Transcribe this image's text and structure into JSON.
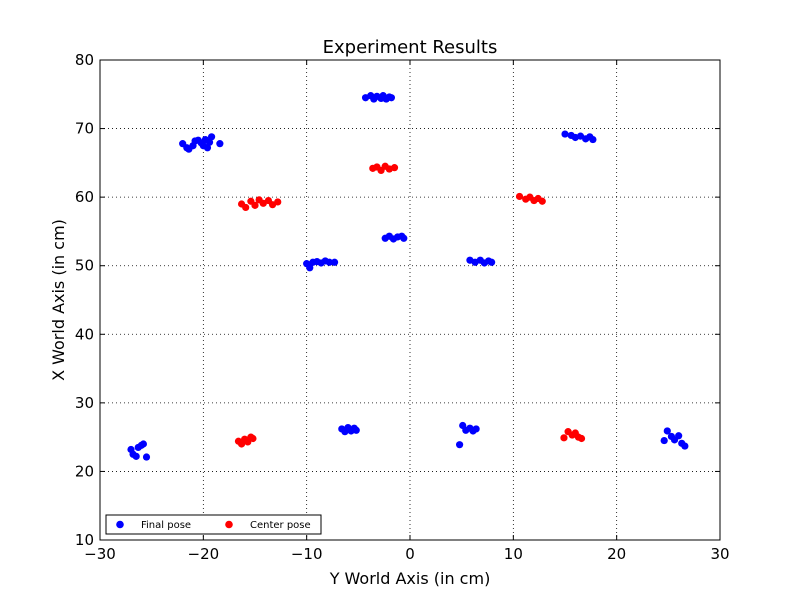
{
  "chart_data": {
    "type": "scatter",
    "title": "Experiment Results",
    "xlabel": "Y World Axis (in cm)",
    "ylabel": "X World Axis (in cm)",
    "xlim": [
      -30,
      30
    ],
    "ylim": [
      10,
      80
    ],
    "x_ticks": [
      "−30",
      "−20",
      "−10",
      "0",
      "10",
      "20",
      "30"
    ],
    "y_ticks": [
      "10",
      "20",
      "30",
      "40",
      "50",
      "60",
      "70",
      "80"
    ],
    "grid": true,
    "legend_position": "bottom-left",
    "series": [
      {
        "name": "Final pose",
        "color": "#0000ff",
        "points": [
          [
            -22,
            67.8
          ],
          [
            -21.6,
            67.2
          ],
          [
            -21.4,
            67.0
          ],
          [
            -21,
            67.5
          ],
          [
            -20.8,
            68.2
          ],
          [
            -20.5,
            68.3
          ],
          [
            -20.2,
            67.9
          ],
          [
            -20,
            67.5
          ],
          [
            -19.8,
            68.4
          ],
          [
            -19.6,
            67.2
          ],
          [
            -19.4,
            68.0
          ],
          [
            -19.2,
            68.8
          ],
          [
            -18.4,
            67.8
          ],
          [
            -4.3,
            74.5
          ],
          [
            -3.8,
            74.8
          ],
          [
            -3.5,
            74.3
          ],
          [
            -3.2,
            74.7
          ],
          [
            -2.8,
            74.4
          ],
          [
            -2.6,
            74.8
          ],
          [
            -2.3,
            74.3
          ],
          [
            -2.0,
            74.6
          ],
          [
            -1.8,
            74.5
          ],
          [
            15,
            69.2
          ],
          [
            15.6,
            69.0
          ],
          [
            16.0,
            68.7
          ],
          [
            16.5,
            68.9
          ],
          [
            17.0,
            68.5
          ],
          [
            17.4,
            68.8
          ],
          [
            17.7,
            68.4
          ],
          [
            -2.4,
            54.0
          ],
          [
            -2.0,
            54.3
          ],
          [
            -1.6,
            53.9
          ],
          [
            -1.2,
            54.2
          ],
          [
            -0.8,
            54.3
          ],
          [
            -0.6,
            54.0
          ],
          [
            -10,
            50.3
          ],
          [
            -9.7,
            49.7
          ],
          [
            -9.4,
            50.5
          ],
          [
            -9.0,
            50.6
          ],
          [
            -8.6,
            50.4
          ],
          [
            -8.2,
            50.7
          ],
          [
            -7.8,
            50.5
          ],
          [
            -7.3,
            50.5
          ],
          [
            5.8,
            50.8
          ],
          [
            6.3,
            50.5
          ],
          [
            6.8,
            50.8
          ],
          [
            7.2,
            50.4
          ],
          [
            7.6,
            50.7
          ],
          [
            7.9,
            50.5
          ],
          [
            -27,
            23.2
          ],
          [
            -26.8,
            22.5
          ],
          [
            -26.5,
            22.2
          ],
          [
            -26.3,
            23.5
          ],
          [
            -26.0,
            23.8
          ],
          [
            -25.8,
            24.0
          ],
          [
            -25.5,
            22.1
          ],
          [
            -6.6,
            26.2
          ],
          [
            -6.3,
            25.8
          ],
          [
            -6.0,
            26.4
          ],
          [
            -5.7,
            25.9
          ],
          [
            -5.4,
            26.3
          ],
          [
            -5.2,
            26.0
          ],
          [
            4.8,
            23.9
          ],
          [
            5.1,
            26.7
          ],
          [
            5.4,
            26.0
          ],
          [
            5.8,
            26.3
          ],
          [
            6.1,
            25.9
          ],
          [
            6.4,
            26.2
          ],
          [
            24.6,
            24.5
          ],
          [
            24.9,
            25.9
          ],
          [
            25.3,
            25.1
          ],
          [
            25.6,
            24.6
          ],
          [
            26.0,
            25.2
          ],
          [
            26.3,
            24.1
          ],
          [
            26.6,
            23.7
          ]
        ]
      },
      {
        "name": "Center pose",
        "color": "#ff0000",
        "points": [
          [
            -16.3,
            59.0
          ],
          [
            -15.9,
            58.5
          ],
          [
            -15.4,
            59.4
          ],
          [
            -15.0,
            58.8
          ],
          [
            -14.6,
            59.6
          ],
          [
            -14.2,
            59.1
          ],
          [
            -13.7,
            59.5
          ],
          [
            -13.3,
            58.9
          ],
          [
            -12.8,
            59.3
          ],
          [
            -3.6,
            64.2
          ],
          [
            -3.2,
            64.4
          ],
          [
            -2.8,
            63.9
          ],
          [
            -2.4,
            64.5
          ],
          [
            -2.0,
            64.1
          ],
          [
            -1.5,
            64.3
          ],
          [
            10.6,
            60.1
          ],
          [
            11.2,
            59.7
          ],
          [
            11.6,
            60.0
          ],
          [
            12.0,
            59.5
          ],
          [
            12.4,
            59.8
          ],
          [
            12.8,
            59.4
          ],
          [
            -16.6,
            24.4
          ],
          [
            -16.3,
            24.0
          ],
          [
            -16.0,
            24.7
          ],
          [
            -15.7,
            24.3
          ],
          [
            -15.4,
            25.0
          ],
          [
            -15.2,
            24.8
          ],
          [
            14.9,
            24.9
          ],
          [
            15.3,
            25.8
          ],
          [
            15.7,
            25.3
          ],
          [
            16.0,
            25.6
          ],
          [
            16.3,
            25.0
          ],
          [
            16.6,
            24.8
          ]
        ]
      }
    ]
  }
}
